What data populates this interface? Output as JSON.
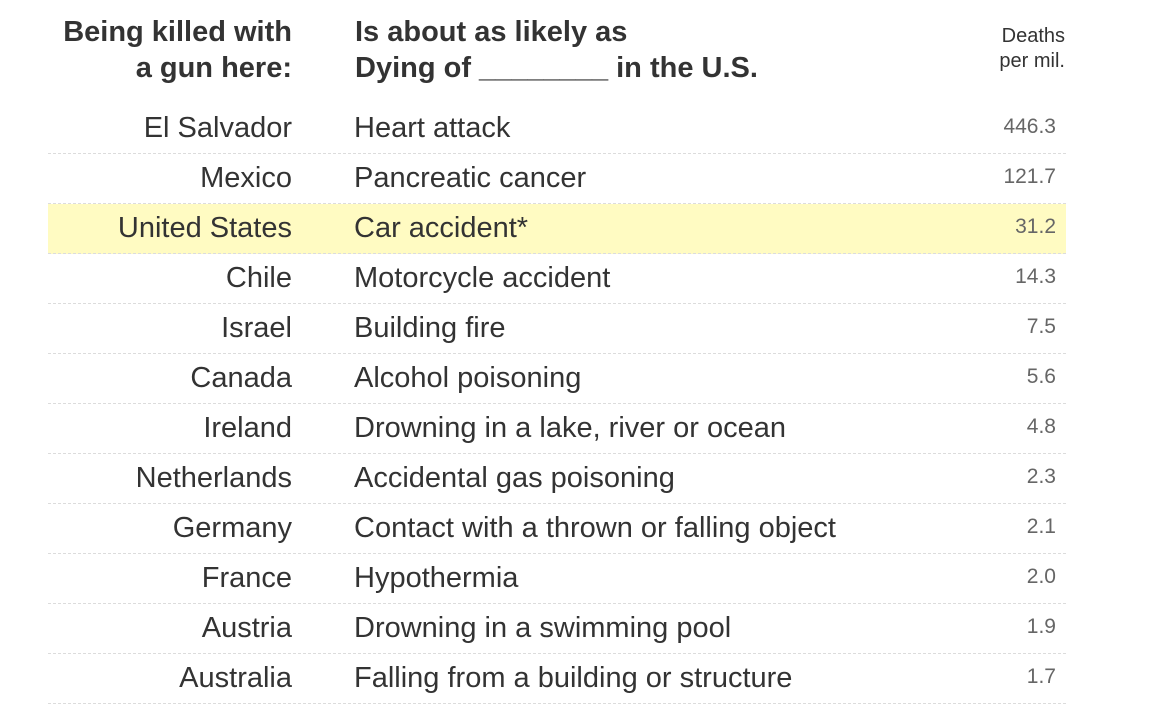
{
  "header": {
    "left_line1": "Being killed with",
    "left_line2": "a gun here:",
    "mid_line1": "Is about as likely as",
    "mid_line2": "Dying of ________ in the U.S.",
    "right_line1": "Deaths",
    "right_line2": "per mil."
  },
  "chart_data": {
    "type": "table",
    "columns": [
      "Being killed with a gun here:",
      "Is about as likely as Dying of ________ in the U.S.",
      "Deaths per mil."
    ],
    "highlight_color": "#fffbc2",
    "rows": [
      {
        "country": "El Salvador",
        "cause": "Heart attack",
        "value": "446.3",
        "highlight": false
      },
      {
        "country": "Mexico",
        "cause": "Pancreatic cancer",
        "value": "121.7",
        "highlight": false
      },
      {
        "country": "United States",
        "cause": "Car accident*",
        "value": "31.2",
        "highlight": true
      },
      {
        "country": "Chile",
        "cause": "Motorcycle accident",
        "value": "14.3",
        "highlight": false
      },
      {
        "country": "Israel",
        "cause": "Building fire",
        "value": "7.5",
        "highlight": false
      },
      {
        "country": "Canada",
        "cause": "Alcohol poisoning",
        "value": "5.6",
        "highlight": false
      },
      {
        "country": "Ireland",
        "cause": "Drowning in a lake, river or ocean",
        "value": "4.8",
        "highlight": false
      },
      {
        "country": "Netherlands",
        "cause": "Accidental gas poisoning",
        "value": "2.3",
        "highlight": false
      },
      {
        "country": "Germany",
        "cause": "Contact with a thrown or falling object",
        "value": "2.1",
        "highlight": false
      },
      {
        "country": "France",
        "cause": "Hypothermia",
        "value": "2.0",
        "highlight": false
      },
      {
        "country": "Austria",
        "cause": "Drowning in a swimming pool",
        "value": "1.9",
        "highlight": false
      },
      {
        "country": "Australia",
        "cause": "Falling from a building or structure",
        "value": "1.7",
        "highlight": false
      }
    ]
  }
}
